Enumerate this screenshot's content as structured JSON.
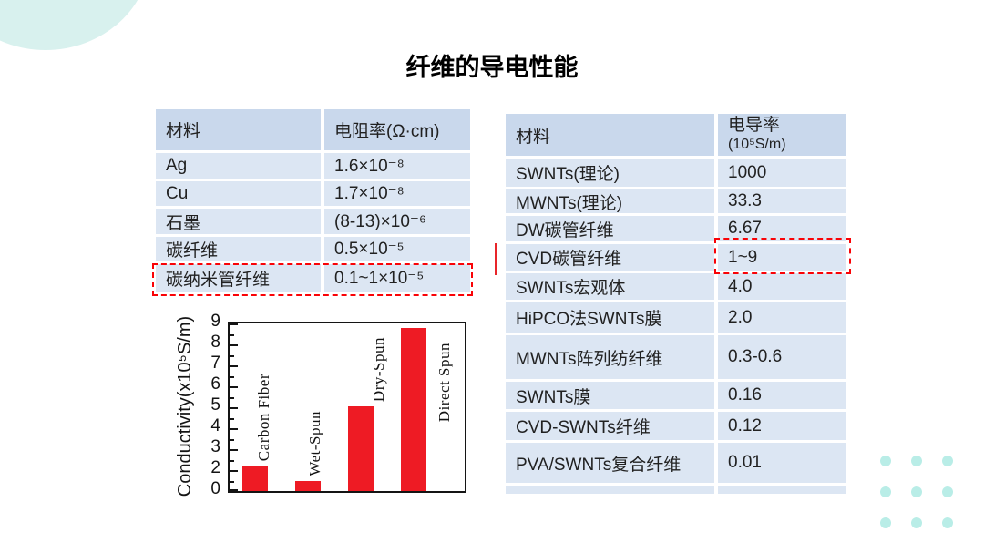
{
  "slide": {
    "title": "纤维的导电性能"
  },
  "left_table": {
    "headers": [
      "材料",
      "电阻率(Ω·cm)"
    ],
    "rows": [
      [
        "Ag",
        "1.6×10⁻⁸"
      ],
      [
        "Cu",
        "1.7×10⁻⁸"
      ],
      [
        "石墨",
        "(8-13)×10⁻⁶"
      ],
      [
        "碳纤维",
        "0.5×10⁻⁵"
      ],
      [
        "碳纳米管纤维",
        "0.1~1×10⁻⁵"
      ]
    ],
    "highlighted_row": "碳纳米管纤维"
  },
  "right_table": {
    "headers": [
      "材料",
      "电导率"
    ],
    "header_unit": "(10⁵S/m)",
    "rows": [
      [
        "SWNTs(理论)",
        "1000"
      ],
      [
        "MWNTs(理论)",
        "33.3"
      ],
      [
        "DW碳管纤维",
        "6.67"
      ],
      [
        "CVD碳管纤维",
        "1~9"
      ],
      [
        "SWNTs宏观体",
        "4.0"
      ],
      [
        "HiPCO法SWNTs膜",
        "2.0"
      ],
      [
        "MWNTs阵列纺纤维",
        "0.3-0.6"
      ],
      [
        "SWNTs膜",
        "0.16"
      ],
      [
        "CVD-SWNTs纤维",
        "0.12"
      ],
      [
        "PVA/SWNTs复合纤维",
        "0.01"
      ]
    ],
    "highlighted_value": "1~9"
  },
  "chart_data": {
    "type": "bar",
    "categories": [
      "Carbon Fiber",
      "Wet-Spun",
      "Dry-Spun",
      "Direct Spun"
    ],
    "values": [
      2.2,
      1.0,
      5.05,
      8.8
    ],
    "ylabel": "Conductivity(x10⁵S/m)",
    "ytick_labels": [
      "9",
      "8",
      "7",
      "6",
      "5",
      "4",
      "3",
      "2",
      "0"
    ],
    "ylim": [
      0,
      9
    ],
    "grid": false,
    "legend": false,
    "bar_color": "#ee1b24",
    "label_positions": [
      "above",
      "above",
      "above",
      "side"
    ]
  },
  "colors": {
    "accent_red": "#ee1b24",
    "highlight_dash": "#f90307",
    "table_header_bg": "#c9d8ec",
    "table_row_bg": "#dce6f3",
    "decor_teal": "#d8f1ee",
    "dot_teal": "#b9ede7"
  }
}
